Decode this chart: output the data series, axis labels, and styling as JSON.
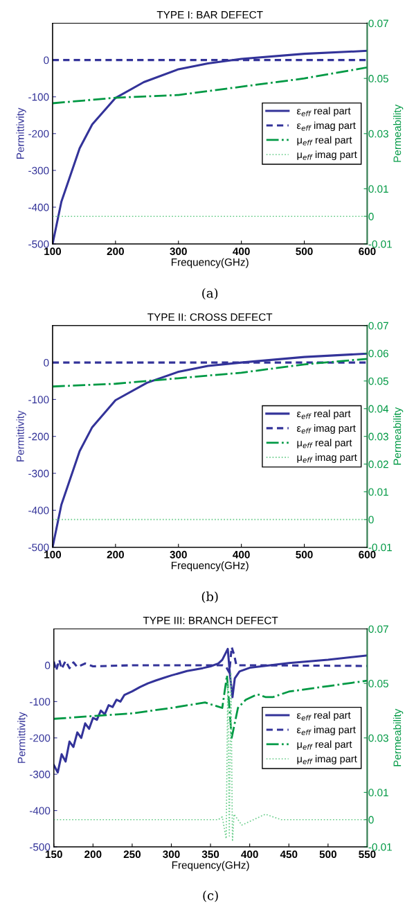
{
  "chart_data": [
    {
      "type": "line",
      "title": "TYPE I: BAR DEFECT",
      "xlabel": "Frequency(GHz)",
      "ylabel": "Permittivity",
      "y2label": "Permeability",
      "annotations": [
        "(a)"
      ],
      "xlim": [
        100,
        600
      ],
      "xticks": [
        100,
        200,
        300,
        400,
        500,
        600
      ],
      "ylim": [
        -500,
        100
      ],
      "yticks": [
        -500,
        -400,
        -300,
        -200,
        -100,
        0
      ],
      "y2lim": [
        -0.01,
        0.07
      ],
      "y2ticks": [
        -0.01,
        0,
        0.01,
        0.03,
        0.05,
        0.07
      ],
      "legend": "center right",
      "grid": false,
      "series": [
        {
          "name": "ε$_{eff}$ real part",
          "color": "#333399",
          "line_style": "solid",
          "x": [
            100,
            114,
            143,
            163,
            200,
            245,
            300,
            347,
            400,
            500,
            600
          ],
          "values": [
            -500,
            -385,
            -240,
            -175,
            -103,
            -60,
            -25,
            -9,
            3,
            17,
            25
          ]
        },
        {
          "name": "ε$_{eff}$ imag part",
          "color": "#333399",
          "line_style": "dashed",
          "x": [
            100,
            600
          ],
          "values": [
            0,
            0
          ]
        },
        {
          "name": "μ$_{eff}$ real part",
          "color": "#009944",
          "line_style": "dashdot",
          "axis": "y2",
          "x": [
            100,
            150,
            200,
            300,
            400,
            500,
            600
          ],
          "values": [
            0.041,
            0.042,
            0.043,
            0.044,
            0.047,
            0.05,
            0.054
          ]
        },
        {
          "name": "μ$_{eff}$ imag part",
          "color": "#66cc88",
          "line_style": "dotted",
          "axis": "y2",
          "x": [
            100,
            600
          ],
          "values": [
            0,
            0
          ]
        }
      ]
    },
    {
      "type": "line",
      "title": "TYPE II: CROSS DEFECT",
      "xlabel": "Frequency(GHz)",
      "ylabel": "Permittivity",
      "y2label": "Permeability",
      "annotations": [
        "(b)"
      ],
      "xlim": [
        100,
        600
      ],
      "xticks": [
        100,
        200,
        300,
        400,
        500,
        600
      ],
      "ylim": [
        -500,
        100
      ],
      "yticks": [
        -500,
        -400,
        -300,
        -200,
        -100,
        0
      ],
      "y2lim": [
        -0.01,
        0.07
      ],
      "y2ticks": [
        -0.01,
        0,
        0.01,
        0.02,
        0.03,
        0.04,
        0.05,
        0.06,
        0.07
      ],
      "legend": "center right",
      "grid": false,
      "series": [
        {
          "name": "ε$_{eff}$ real part",
          "color": "#333399",
          "line_style": "solid",
          "x": [
            100,
            114,
            143,
            163,
            200,
            250,
            300,
            347,
            400,
            500,
            600
          ],
          "values": [
            -500,
            -385,
            -240,
            -175,
            -102,
            -55,
            -25,
            -9,
            0,
            15,
            24
          ]
        },
        {
          "name": "ε$_{eff}$ imag part",
          "color": "#333399",
          "line_style": "dashed",
          "x": [
            100,
            600
          ],
          "values": [
            0,
            0
          ]
        },
        {
          "name": "μ$_{eff}$ real part",
          "color": "#009944",
          "line_style": "dashdot",
          "axis": "y2",
          "x": [
            100,
            200,
            300,
            400,
            500,
            600
          ],
          "values": [
            0.048,
            0.049,
            0.051,
            0.053,
            0.056,
            0.058
          ]
        },
        {
          "name": "μ$_{eff}$ imag part",
          "color": "#66cc88",
          "line_style": "dotted",
          "axis": "y2",
          "x": [
            100,
            600
          ],
          "values": [
            0,
            0
          ]
        }
      ]
    },
    {
      "type": "line",
      "title": "TYPE III: BRANCH DEFECT",
      "xlabel": "Frequency(GHz)",
      "ylabel": "Permittivity",
      "y2label": "Permeability",
      "annotations": [
        "(c)"
      ],
      "xlim": [
        150,
        550
      ],
      "xticks": [
        150,
        200,
        250,
        300,
        350,
        400,
        450,
        500,
        550
      ],
      "ylim": [
        -500,
        100
      ],
      "yticks": [
        -500,
        -400,
        -300,
        -200,
        -100,
        0
      ],
      "y2lim": [
        -0.01,
        0.07
      ],
      "y2ticks": [
        -0.01,
        0,
        0.01,
        0.03,
        0.05,
        0.07
      ],
      "legend": "center right",
      "grid": false,
      "series": [
        {
          "name": "ε$_{eff}$ real part",
          "color": "#333399",
          "line_style": "solid",
          "x": [
            150,
            155,
            160,
            165,
            170,
            175,
            180,
            185,
            190,
            195,
            200,
            205,
            210,
            215,
            220,
            225,
            230,
            235,
            240,
            250,
            260,
            270,
            280,
            290,
            300,
            310,
            320,
            330,
            340,
            350,
            360,
            365,
            372,
            375,
            378,
            381,
            387,
            400,
            450,
            500,
            550
          ],
          "values": [
            -275,
            -295,
            -245,
            -265,
            -210,
            -225,
            -185,
            -200,
            -160,
            -175,
            -145,
            -150,
            -125,
            -135,
            -110,
            -115,
            -95,
            -100,
            -82,
            -72,
            -60,
            -50,
            -42,
            -35,
            -28,
            -22,
            -16,
            -12,
            -8,
            -3,
            5,
            15,
            45,
            -30,
            -88,
            -36,
            -17,
            -7,
            6,
            15,
            27
          ]
        },
        {
          "name": "ε$_{eff}$ imag part",
          "color": "#333399",
          "line_style": "dashed",
          "x": [
            150,
            153,
            157,
            160,
            165,
            170,
            175,
            180,
            190,
            200,
            250,
            300,
            365,
            370,
            374,
            377,
            380,
            383,
            400,
            550
          ],
          "values": [
            10,
            -15,
            15,
            -10,
            12,
            -8,
            8,
            -5,
            5,
            -3,
            0,
            0,
            0,
            -5,
            -20,
            50,
            30,
            0,
            0,
            -2
          ]
        },
        {
          "name": "μ$_{eff}$ real part",
          "color": "#009944",
          "line_style": "dashdot",
          "axis": "y2",
          "x": [
            150,
            250,
            300,
            343,
            365,
            371,
            377,
            385,
            395,
            410,
            420,
            430,
            450,
            500,
            550
          ],
          "values": [
            0.037,
            0.039,
            0.041,
            0.043,
            0.041,
            0.053,
            0.03,
            0.041,
            0.044,
            0.046,
            0.045,
            0.045,
            0.047,
            0.049,
            0.051
          ]
        },
        {
          "name": "μ$_{eff}$ imag part",
          "color": "#66cc88",
          "line_style": "dotted",
          "axis": "y2",
          "x": [
            150,
            360,
            365,
            370,
            372,
            374,
            376,
            378,
            380,
            390,
            420,
            440,
            550
          ],
          "values": [
            0,
            0,
            0.001,
            -0.007,
            0.05,
            -0.006,
            0.054,
            -0.008,
            0.002,
            -0.002,
            0.002,
            0,
            0
          ]
        }
      ]
    }
  ]
}
